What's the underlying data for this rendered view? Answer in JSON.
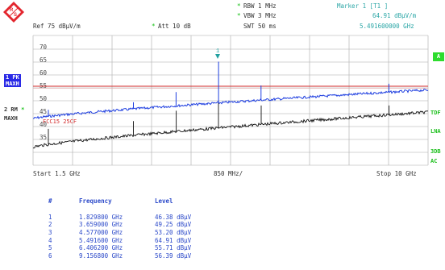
{
  "header": {
    "rbw": "RBW  1 MHz",
    "vbw": "VBW  3 MHz",
    "swt": "SWT  50 ms",
    "ref": "Ref  75 dBµV/m",
    "att": "Att  10 dB",
    "marker_title": "Marker 1 [T1 ]",
    "marker_level": "64.91  dBµV/m",
    "marker_freq": "5.491600000 GHz"
  },
  "left_panel": {
    "trace1_label": "1 PK",
    "trace1_mode": "MAXH",
    "trace2_label": "2 RM",
    "trace2_mode": "MAXH",
    "limit_label": "FCC15 25CF"
  },
  "right_panel": {
    "a_label": "A",
    "tdf": "TDF",
    "lna": "LNA",
    "db3": "3DB",
    "ac": "AC"
  },
  "grid": {
    "y_ticks": [
      "70",
      "65",
      "60",
      "55",
      "50",
      "45",
      "40",
      "35"
    ]
  },
  "footer": {
    "start": "Start  1.5 GHz",
    "span": "850 MHz/",
    "stop": "Stop  10 GHz"
  },
  "marker_table": {
    "headers": [
      "#",
      "Frequency",
      "Level"
    ],
    "rows": [
      {
        "n": "1",
        "freq": "1.829800 GHz",
        "level": "46.38 dBµV"
      },
      {
        "n": "2",
        "freq": "3.659000 GHz",
        "level": "49.25 dBµV"
      },
      {
        "n": "3",
        "freq": "4.577000 GHz",
        "level": "53.20 dBµV"
      },
      {
        "n": "4",
        "freq": "5.491600 GHz",
        "level": "64.91 dBµV"
      },
      {
        "n": "5",
        "freq": "6.406200 GHz",
        "level": "55.71 dBµV"
      },
      {
        "n": "6",
        "freq": "9.156800 GHz",
        "level": "56.39 dBµV"
      }
    ]
  },
  "colors": {
    "trace1": "#1f3fe0",
    "trace2": "#111111",
    "limit_line": "#d22a2a",
    "marker": "#21a0a0",
    "grid": "#9a9a9a",
    "logo": "#e3262e"
  },
  "icons": [
    "rohde-schwarz-logo-icon",
    "marker-triangle-icon"
  ]
}
